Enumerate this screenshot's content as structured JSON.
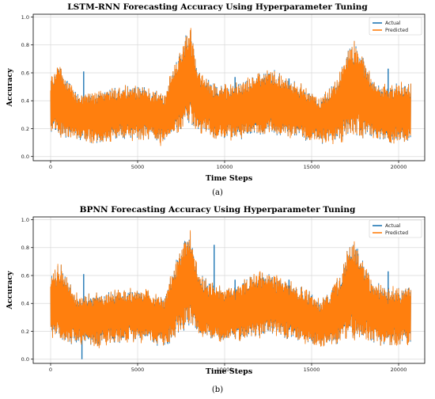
{
  "colors": {
    "actual": "#1f77b4",
    "predicted": "#ff7f0e",
    "grid": "#d9d9d9"
  },
  "chart_data": [
    {
      "type": "line",
      "title": "LSTM-RNN Forecasting Accuracy Using Hyperparameter Tuning",
      "xlabel": "Time Steps",
      "ylabel": "Accuracy",
      "caption": "(a)",
      "xlim": [
        -1000,
        21500
      ],
      "ylim": [
        -0.03,
        1.02
      ],
      "xticks": [
        0,
        5000,
        10000,
        15000,
        20000
      ],
      "yticks": [
        0.0,
        0.2,
        0.4,
        0.6,
        0.8,
        1.0
      ],
      "xtick_labels": [
        "0",
        "5000",
        "10000",
        "15000",
        "20000"
      ],
      "ytick_labels": [
        "0.0",
        "0.2",
        "0.4",
        "0.6",
        "0.8",
        "1.0"
      ],
      "grid": true,
      "legend_position": "top-right",
      "series": [
        {
          "name": "Actual",
          "color": "#1f77b4"
        },
        {
          "name": "Predicted",
          "color": "#ff7f0e"
        }
      ],
      "x_range": [
        0,
        20700
      ],
      "envelope": {
        "x": [
          0,
          500,
          1500,
          2500,
          3500,
          4500,
          5500,
          6500,
          7200,
          7700,
          8000,
          8500,
          9500,
          10500,
          11500,
          12500,
          13500,
          14500,
          15500,
          16500,
          17000,
          17500,
          18500,
          19500,
          20700
        ],
        "upper": [
          0.58,
          0.66,
          0.45,
          0.45,
          0.48,
          0.5,
          0.5,
          0.42,
          0.7,
          0.82,
          0.95,
          0.6,
          0.52,
          0.5,
          0.58,
          0.62,
          0.58,
          0.5,
          0.42,
          0.56,
          0.74,
          0.84,
          0.55,
          0.5,
          0.52
        ],
        "lower": [
          0.18,
          0.14,
          0.12,
          0.1,
          0.12,
          0.14,
          0.13,
          0.1,
          0.16,
          0.22,
          0.24,
          0.18,
          0.14,
          0.13,
          0.15,
          0.17,
          0.16,
          0.13,
          0.1,
          0.1,
          0.14,
          0.16,
          0.12,
          0.1,
          0.12
        ]
      },
      "actual_spikes": [
        {
          "x": 1900,
          "y": 0.61
        },
        {
          "x": 4800,
          "y": 0.49
        },
        {
          "x": 10600,
          "y": 0.57
        },
        {
          "x": 13700,
          "y": 0.56
        },
        {
          "x": 19400,
          "y": 0.63
        },
        {
          "x": 18200,
          "y": 0.48
        }
      ]
    },
    {
      "type": "line",
      "title": "BPNN Forecasting Accuracy Using Hyperparameter Tuning",
      "xlabel": "Time Steps",
      "ylabel": "Accuracy",
      "caption": "(b)",
      "xlim": [
        -1000,
        21500
      ],
      "ylim": [
        -0.03,
        1.02
      ],
      "xticks": [
        0,
        5000,
        10000,
        15000,
        20000
      ],
      "yticks": [
        0.0,
        0.2,
        0.4,
        0.6,
        0.8,
        1.0
      ],
      "xtick_labels": [
        "0",
        "5000",
        "10000",
        "15000",
        "20000"
      ],
      "ytick_labels": [
        "0.0",
        "0.2",
        "0.4",
        "0.6",
        "0.8",
        "1.0"
      ],
      "grid": true,
      "legend_position": "top-right",
      "series": [
        {
          "name": "Actual",
          "color": "#1f77b4"
        },
        {
          "name": "Predicted",
          "color": "#ff7f0e"
        }
      ],
      "x_range": [
        0,
        20700
      ],
      "envelope": {
        "x": [
          0,
          500,
          1500,
          2500,
          3500,
          4500,
          5500,
          6500,
          7200,
          7700,
          8000,
          8500,
          9500,
          10500,
          11500,
          12500,
          13500,
          14500,
          15500,
          16500,
          17000,
          17500,
          18500,
          19500,
          20700
        ],
        "upper": [
          0.58,
          0.68,
          0.46,
          0.46,
          0.48,
          0.5,
          0.5,
          0.42,
          0.72,
          0.84,
          0.96,
          0.6,
          0.52,
          0.5,
          0.6,
          0.62,
          0.56,
          0.5,
          0.42,
          0.56,
          0.76,
          0.85,
          0.55,
          0.5,
          0.52
        ],
        "lower": [
          0.18,
          0.14,
          0.12,
          0.1,
          0.12,
          0.14,
          0.13,
          0.1,
          0.16,
          0.22,
          0.24,
          0.18,
          0.14,
          0.13,
          0.15,
          0.17,
          0.16,
          0.13,
          0.1,
          0.1,
          0.14,
          0.16,
          0.12,
          0.1,
          0.12
        ]
      },
      "actual_spikes": [
        {
          "x": 1900,
          "y": 0.61
        },
        {
          "x": 1800,
          "y": 0.0
        },
        {
          "x": 9400,
          "y": 0.82
        },
        {
          "x": 10600,
          "y": 0.57
        },
        {
          "x": 19400,
          "y": 0.63
        },
        {
          "x": 13700,
          "y": 0.57
        }
      ]
    }
  ]
}
